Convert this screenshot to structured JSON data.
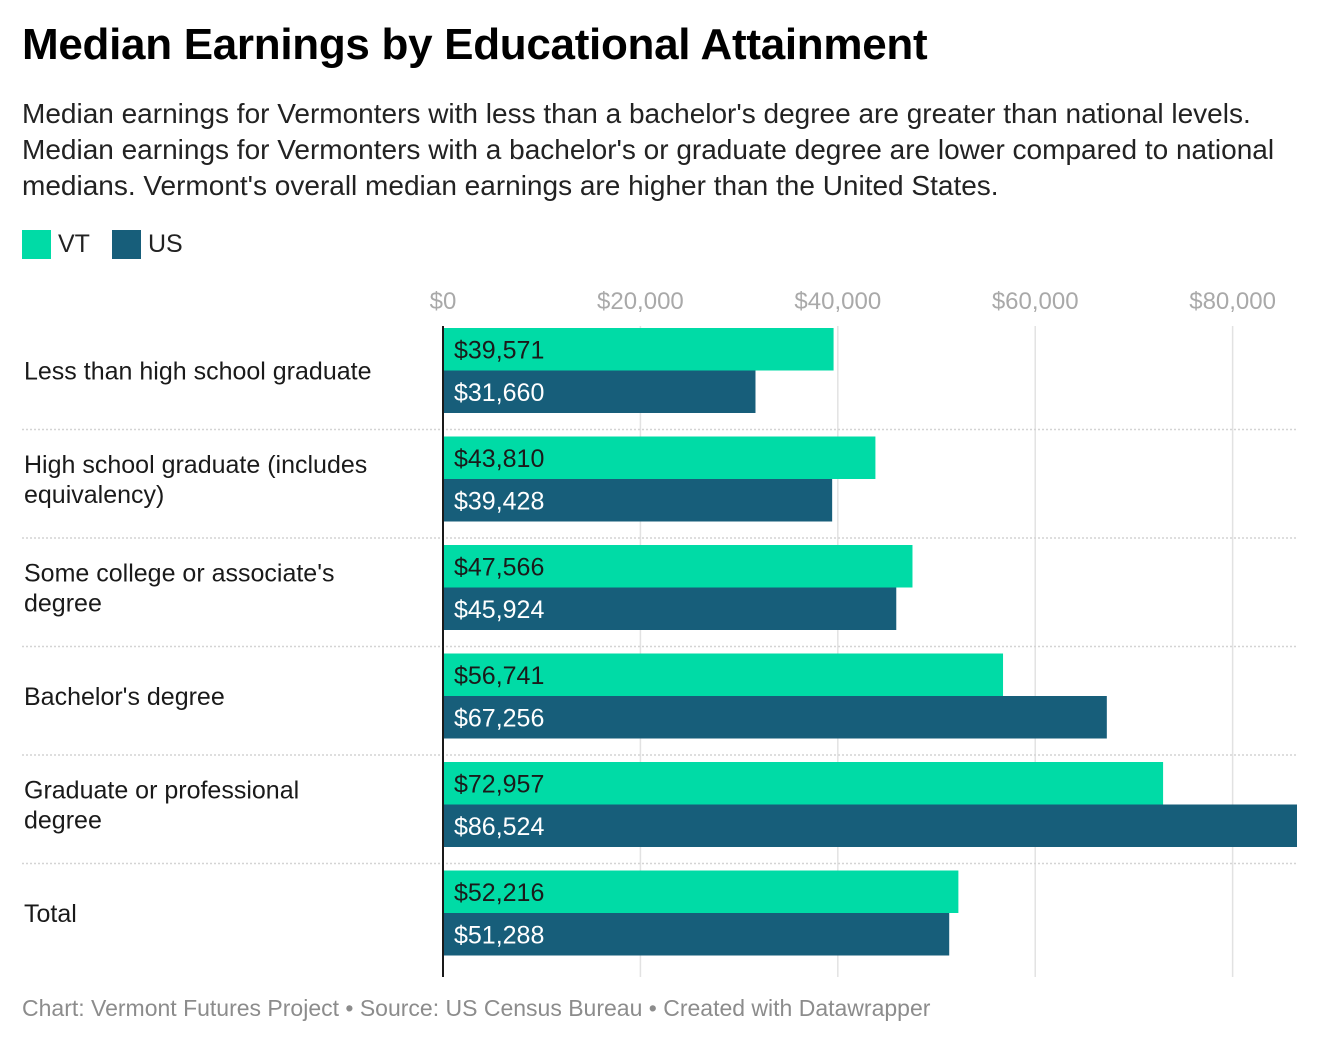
{
  "title": "Median Earnings by Educational Attainment",
  "subtitle": "Median earnings for Vermonters with less than a bachelor's degree are greater than national levels. Median earnings for Vermonters with a bachelor's or graduate degree are lower compared to national medians. Vermont's overall median earnings are higher than the United States.",
  "source_line": "Chart: Vermont Futures Project • Source: US Census Bureau • Created with Datawrapper",
  "colors": {
    "vt": "#00dba6",
    "us": "#175e7a",
    "grid": "#e2e2e2",
    "separator": "#d4d4d4",
    "axis": "#1a1a1a",
    "tick_text": "#a9a9a9"
  },
  "chart_data": {
    "type": "bar",
    "orientation": "horizontal",
    "categories": [
      "Less than high school graduate",
      "High school graduate (includes equivalency)",
      "Some college or associate's degree",
      "Bachelor's degree",
      "Graduate or professional degree",
      "Total"
    ],
    "series": [
      {
        "name": "VT",
        "values": [
          39571,
          43810,
          47566,
          56741,
          72957,
          52216
        ]
      },
      {
        "name": "US",
        "values": [
          31660,
          39428,
          45924,
          67256,
          86524,
          51288
        ]
      }
    ],
    "value_labels": [
      [
        "$39,571",
        "$43,810",
        "$47,566",
        "$56,741",
        "$72,957",
        "$52,216"
      ],
      [
        "$31,660",
        "$39,428",
        "$45,924",
        "$67,256",
        "$86,524",
        "$51,288"
      ]
    ],
    "x_ticks": [
      0,
      20000,
      40000,
      60000,
      80000
    ],
    "x_tick_labels": [
      "$0",
      "$20,000",
      "$40,000",
      "$60,000",
      "$80,000"
    ],
    "xlim": [
      0,
      86524
    ],
    "grid": true,
    "legend_position": "top-left"
  }
}
